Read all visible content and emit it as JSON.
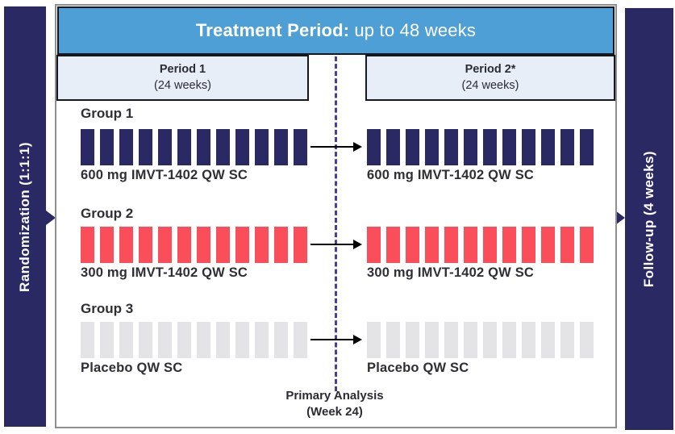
{
  "colors": {
    "navy": "#2a2963",
    "header_blue": "#4f9fd7",
    "panel_light_blue": "#e7eef7",
    "group1_bar": "#2a2963",
    "group2_bar": "#fa4f5b",
    "group3_bar": "#e4e4e6",
    "dashed_line_purple": "#4a3f96",
    "text_dark": "#2e2e34"
  },
  "left_rail": {
    "label": "Randomization (1:1:1)"
  },
  "right_rail": {
    "label": "Follow-up (4 weeks)"
  },
  "header": {
    "bold": "Treatment Period:",
    "rest": "up to 48 weeks"
  },
  "periods": [
    {
      "name": "Period 1",
      "duration": "(24 weeks)"
    },
    {
      "name": "Period 2*",
      "duration": "(24 weeks)"
    }
  ],
  "groups": [
    {
      "name": "Group 1",
      "bar_color": "#2a2963",
      "period1": {
        "doses": 12,
        "label": "600 mg IMVT-1402 QW SC"
      },
      "period2": {
        "doses": 12,
        "label": "600 mg IMVT-1402 QW SC"
      }
    },
    {
      "name": "Group 2",
      "bar_color": "#fa4f5b",
      "period1": {
        "doses": 12,
        "label": "300 mg IMVT-1402 QW SC"
      },
      "period2": {
        "doses": 12,
        "label": "300 mg IMVT-1402 QW SC"
      }
    },
    {
      "name": "Group 3",
      "bar_color": "#e4e4e6",
      "period1": {
        "doses": 12,
        "label": "Placebo QW SC"
      },
      "period2": {
        "doses": 12,
        "label": "Placebo QW SC"
      }
    }
  ],
  "annotation": {
    "line1": "Primary Analysis",
    "line2": "(Week 24)"
  }
}
